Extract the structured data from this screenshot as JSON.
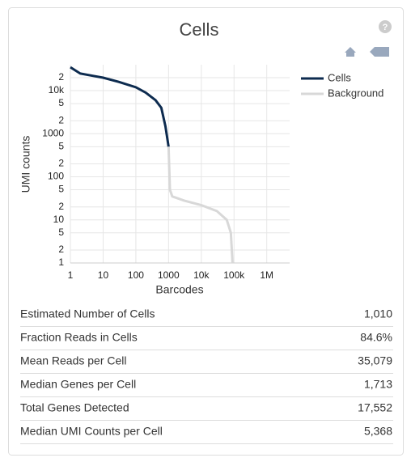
{
  "chart_data": {
    "type": "line",
    "title": "Cells",
    "xlabel": "Barcodes",
    "ylabel": "UMI counts",
    "xscale": "log",
    "yscale": "log",
    "grid": true,
    "legend": "upper right",
    "xlim": [
      1,
      5000000
    ],
    "ylim": [
      1,
      40000
    ],
    "xticks": [
      1,
      10,
      100,
      1000,
      {
        "value": 10000,
        "label": "10k"
      },
      {
        "value": 100000,
        "label": "100k"
      },
      {
        "value": 1000000,
        "label": "1M"
      }
    ],
    "yticks": [
      1,
      2,
      5,
      10,
      {
        "value": 20,
        "label": "2"
      },
      {
        "value": 50,
        "label": "5"
      },
      100,
      {
        "value": 200,
        "label": "2"
      },
      {
        "value": 500,
        "label": "5"
      },
      1000,
      {
        "value": 2000,
        "label": "2"
      },
      {
        "value": 5000,
        "label": "5"
      },
      {
        "value": 10000,
        "label": "10k"
      },
      {
        "value": 20000,
        "label": "2"
      }
    ],
    "series": [
      {
        "name": "Cells",
        "color": "#0d2b4f",
        "x": [
          1,
          2,
          5,
          10,
          30,
          100,
          200,
          400,
          600,
          800,
          1000
        ],
        "values": [
          35000,
          25000,
          22000,
          20000,
          16000,
          12000,
          9000,
          6000,
          4000,
          1500,
          500
        ]
      },
      {
        "name": "Background",
        "color": "#d8d8d8",
        "x": [
          1000,
          1100,
          1300,
          3000,
          10000,
          30000,
          60000,
          80000,
          90000
        ],
        "values": [
          500,
          50,
          35,
          28,
          22,
          16,
          10,
          5,
          1
        ]
      }
    ]
  },
  "table": {
    "rows": [
      [
        "Estimated Number of Cells",
        "1,010"
      ],
      [
        "Fraction Reads in Cells",
        "84.6%"
      ],
      [
        "Mean Reads per Cell",
        "35,079"
      ],
      [
        "Median Genes per Cell",
        "1,713"
      ],
      [
        "Total Genes Detected",
        "17,552"
      ],
      [
        "Median UMI Counts per Cell",
        "5,368"
      ]
    ]
  }
}
